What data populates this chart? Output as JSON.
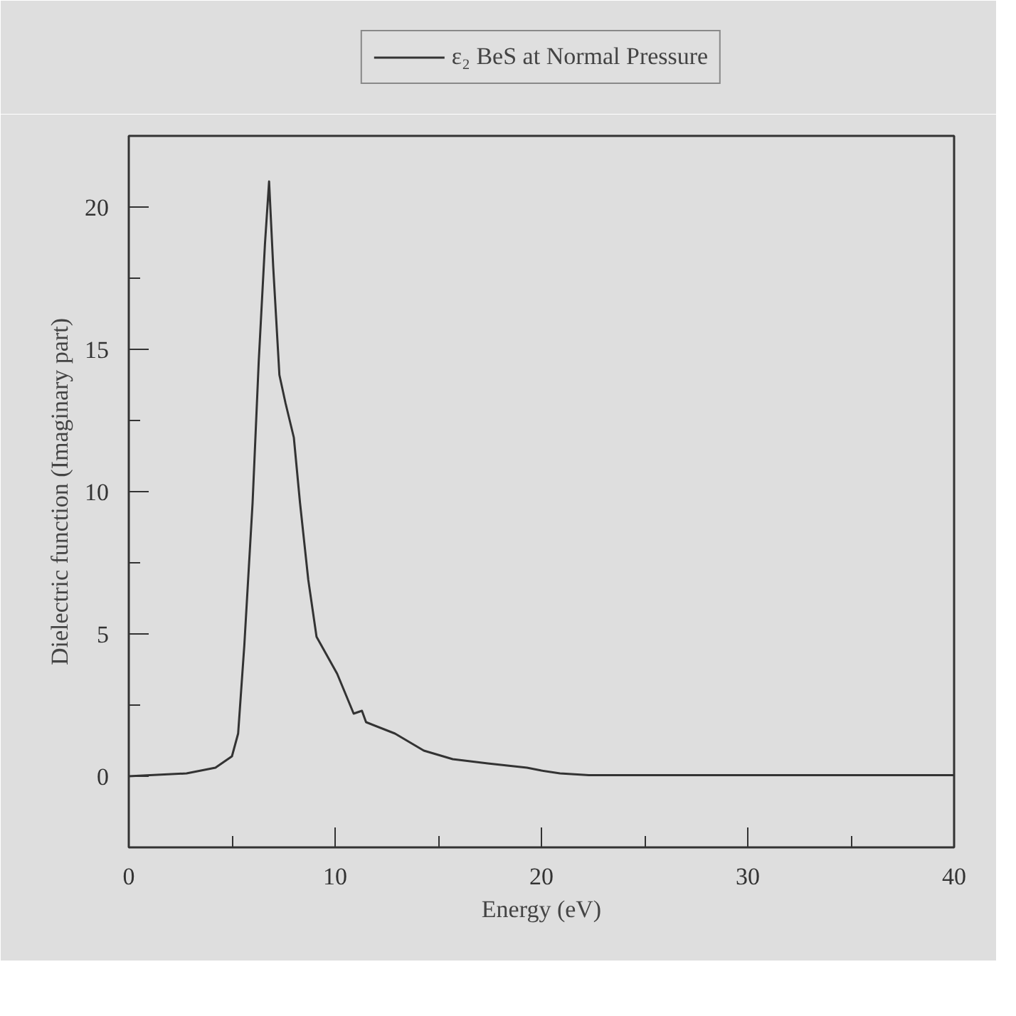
{
  "chart_data": {
    "type": "line",
    "xlabel": "Energy (eV)",
    "ylabel": "Dielectric function (Imaginary part)",
    "xlim": [
      0,
      40
    ],
    "ylim": [
      -2.5,
      22.5
    ],
    "xticks": [
      0,
      {
        "value": 5,
        "label": null
      },
      10,
      {
        "value": 15,
        "label": null
      },
      20,
      {
        "value": 25,
        "label": null
      },
      30,
      {
        "value": 35,
        "label": null
      },
      40
    ],
    "yticks": [
      0,
      {
        "value": 2.5,
        "label": null
      },
      5,
      {
        "value": 7.5,
        "label": null
      },
      10,
      {
        "value": 12.5,
        "label": null
      },
      15,
      {
        "value": 17.5,
        "label": null
      },
      20
    ],
    "grid": false,
    "legend": "top",
    "series": [
      {
        "name": "ε₂ BeS at Normal Pressure",
        "color": "#333333",
        "x": [
          0,
          2.8,
          4.2,
          5.0,
          5.3,
          5.6,
          6.0,
          6.3,
          6.6,
          6.8,
          7.0,
          7.3,
          7.6,
          8.0,
          8.3,
          8.7,
          9.1,
          10.1,
          10.9,
          11.3,
          11.5,
          12.9,
          14.3,
          15.7,
          17.4,
          19.3,
          20.0,
          20.9,
          22.3,
          30,
          40
        ],
        "values": [
          0,
          0.1,
          0.3,
          0.7,
          1.5,
          4.6,
          9.6,
          14.6,
          18.7,
          20.9,
          17.9,
          14.1,
          13.1,
          11.9,
          9.6,
          6.9,
          4.9,
          3.6,
          2.2,
          2.3,
          1.9,
          1.5,
          0.9,
          0.6,
          0.45,
          0.3,
          0.2,
          0.1,
          0.04,
          0.04,
          0.04
        ]
      }
    ]
  }
}
